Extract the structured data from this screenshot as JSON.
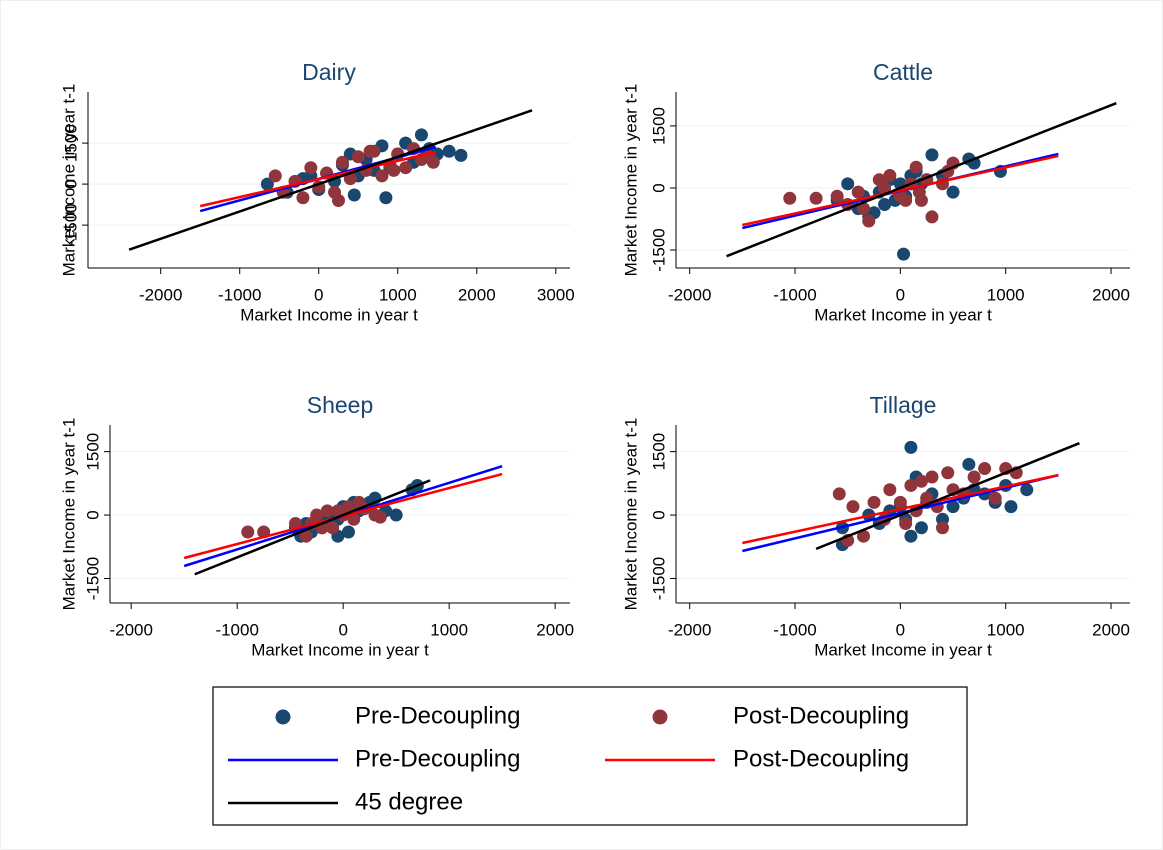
{
  "chart_data": [
    {
      "type": "scatter",
      "title": "Dairy",
      "xlabel": "Market Income in year t",
      "ylabel": "Market Income in year t-1",
      "xlim": [
        -2920,
        3180
      ],
      "ylim": [
        -3070,
        3370
      ],
      "xticks": [
        -2000,
        -1000,
        0,
        1000,
        2000,
        3000
      ],
      "yticks": [
        -1500,
        0,
        1500
      ],
      "grid": true,
      "series": [
        {
          "name": "Pre-Decoupling",
          "mode": "markers",
          "color": "#1a476f",
          "x": [
            -650,
            -400,
            -200,
            0,
            100,
            200,
            300,
            400,
            500,
            600,
            700,
            800,
            900,
            1000,
            1100,
            1200,
            1300,
            1400,
            1500,
            1650,
            1800,
            850,
            1350,
            450,
            -100
          ],
          "y": [
            0,
            -300,
            200,
            -200,
            400,
            100,
            700,
            1100,
            300,
            900,
            500,
            1400,
            600,
            1100,
            1500,
            800,
            1800,
            1300,
            1100,
            1200,
            1050,
            -500,
            1000,
            -400,
            300
          ]
        },
        {
          "name": "Post-Decoupling",
          "mode": "markers",
          "color": "#90353b",
          "x": [
            -550,
            -300,
            -200,
            -100,
            0,
            100,
            200,
            300,
            400,
            500,
            600,
            700,
            800,
            900,
            1000,
            1100,
            1200,
            1300,
            1400,
            -450,
            250,
            650,
            950,
            1450
          ],
          "y": [
            300,
            100,
            -500,
            600,
            -100,
            400,
            -300,
            800,
            200,
            1000,
            500,
            1200,
            300,
            700,
            1100,
            600,
            1300,
            900,
            1000,
            -300,
            -600,
            1200,
            500,
            800
          ]
        },
        {
          "name": "Pre-Decoupling",
          "mode": "line",
          "color": "#0000ff",
          "x": [
            -1500,
            1480
          ],
          "y": [
            -988,
            1354
          ]
        },
        {
          "name": "Post-Decoupling",
          "mode": "line",
          "color": "#ff0000",
          "x": [
            -1500,
            1480
          ],
          "y": [
            -805,
            1170
          ]
        },
        {
          "name": "45 degree",
          "mode": "line",
          "color": "#000000",
          "x": [
            -2400,
            2700
          ],
          "y": [
            -2400,
            2700
          ]
        }
      ]
    },
    {
      "type": "scatter",
      "title": "Cattle",
      "xlabel": "Market Income in year t",
      "ylabel": "Market Income in year t-1",
      "xlim": [
        -2130,
        2180
      ],
      "ylim": [
        -1935,
        2320
      ],
      "xticks": [
        -2000,
        -1000,
        0,
        1000,
        2000
      ],
      "yticks": [
        -1500,
        0,
        1500
      ],
      "grid": true,
      "series": [
        {
          "name": "Pre-Decoupling",
          "mode": "markers",
          "color": "#1a476f",
          "x": [
            -600,
            -500,
            -400,
            -350,
            -300,
            -200,
            -150,
            -100,
            -50,
            0,
            50,
            100,
            150,
            200,
            250,
            300,
            400,
            500,
            650,
            700,
            950,
            30,
            -250
          ],
          "y": [
            -300,
            100,
            -500,
            -200,
            -700,
            -100,
            -400,
            200,
            -300,
            100,
            -200,
            300,
            400,
            100,
            200,
            800,
            300,
            -100,
            700,
            600,
            400,
            -1600,
            -600
          ]
        },
        {
          "name": "Post-Decoupling",
          "mode": "markers",
          "color": "#90353b",
          "x": [
            -1050,
            -800,
            -600,
            -500,
            -400,
            -300,
            -200,
            -100,
            0,
            50,
            100,
            150,
            200,
            250,
            300,
            400,
            450,
            500,
            -350,
            -150,
            180
          ],
          "y": [
            -250,
            -250,
            -200,
            -400,
            -100,
            -800,
            200,
            300,
            -200,
            -300,
            100,
            500,
            -300,
            200,
            -700,
            100,
            400,
            600,
            -500,
            0,
            -100
          ]
        },
        {
          "name": "Pre-Decoupling",
          "mode": "line",
          "color": "#0000ff",
          "x": [
            -1500,
            1500
          ],
          "y": [
            -968,
            823
          ]
        },
        {
          "name": "Post-Decoupling",
          "mode": "line",
          "color": "#ff0000",
          "x": [
            -1500,
            1500
          ],
          "y": [
            -895,
            774
          ]
        },
        {
          "name": "45 degree",
          "mode": "line",
          "color": "#000000",
          "x": [
            -1650,
            2050
          ],
          "y": [
            -1650,
            2050
          ]
        }
      ]
    },
    {
      "type": "scatter",
      "title": "Sheep",
      "xlabel": "Market Income in year t",
      "ylabel": "Market Income in year t-1",
      "xlim": [
        -2200,
        2140
      ],
      "ylim": [
        -2080,
        2130
      ],
      "xticks": [
        -2000,
        -1000,
        0,
        1000,
        2000
      ],
      "yticks": [
        -1500,
        0,
        1500
      ],
      "grid": true,
      "series": [
        {
          "name": "Pre-Decoupling",
          "mode": "markers",
          "color": "#1a476f",
          "x": [
            -450,
            -400,
            -350,
            -300,
            -250,
            -200,
            -150,
            -100,
            -50,
            0,
            50,
            100,
            150,
            200,
            250,
            300,
            400,
            500,
            650,
            700,
            -50
          ],
          "y": [
            -300,
            -500,
            -200,
            -400,
            -100,
            -300,
            0,
            -200,
            -100,
            200,
            -400,
            300,
            100,
            200,
            300,
            400,
            100,
            0,
            600,
            700,
            -500
          ]
        },
        {
          "name": "Post-Decoupling",
          "mode": "markers",
          "color": "#90353b",
          "x": [
            -900,
            -750,
            -450,
            -350,
            -250,
            -200,
            -150,
            -100,
            -50,
            0,
            50,
            100,
            150,
            200,
            300,
            350,
            -300
          ],
          "y": [
            -400,
            -400,
            -200,
            -500,
            0,
            -300,
            100,
            -300,
            100,
            0,
            200,
            -100,
            300,
            150,
            0,
            -50,
            -200
          ]
        },
        {
          "name": "Pre-Decoupling",
          "mode": "line",
          "color": "#0000ff",
          "x": [
            -1500,
            1500
          ],
          "y": [
            -1205,
            1157
          ]
        },
        {
          "name": "Post-Decoupling",
          "mode": "line",
          "color": "#ff0000",
          "x": [
            -1500,
            1500
          ],
          "y": [
            -1016,
            969
          ]
        },
        {
          "name": "45 degree",
          "mode": "line",
          "color": "#000000",
          "x": [
            -1400,
            820
          ],
          "y": [
            -1400,
            820
          ]
        }
      ]
    },
    {
      "type": "scatter",
      "title": "Tillage",
      "xlabel": "Market Income in year t",
      "ylabel": "Market Income in year t-1",
      "xlim": [
        -2130,
        2180
      ],
      "ylim": [
        -2080,
        2130
      ],
      "xticks": [
        -2000,
        -1000,
        0,
        1000,
        2000
      ],
      "yticks": [
        -1500,
        0,
        1500
      ],
      "grid": true,
      "series": [
        {
          "name": "Pre-Decoupling",
          "mode": "markers",
          "color": "#1a476f",
          "x": [
            -550,
            -550,
            -300,
            -200,
            -100,
            0,
            50,
            100,
            150,
            200,
            250,
            300,
            400,
            500,
            600,
            650,
            700,
            800,
            900,
            1000,
            1200,
            100,
            1050
          ],
          "y": [
            -700,
            -300,
            0,
            -200,
            100,
            200,
            -100,
            1600,
            900,
            -300,
            300,
            500,
            -100,
            200,
            400,
            1200,
            600,
            500,
            300,
            700,
            600,
            -500,
            200
          ]
        },
        {
          "name": "Post-Decoupling",
          "mode": "markers",
          "color": "#90353b",
          "x": [
            -580,
            -500,
            -450,
            -350,
            -250,
            -150,
            -100,
            0,
            50,
            100,
            150,
            200,
            250,
            300,
            350,
            400,
            450,
            500,
            600,
            700,
            800,
            900,
            1000,
            1100
          ],
          "y": [
            500,
            -600,
            200,
            -500,
            300,
            -100,
            600,
            300,
            -200,
            700,
            100,
            800,
            400,
            900,
            200,
            -300,
            1000,
            600,
            500,
            900,
            1100,
            400,
            1100,
            1000
          ]
        },
        {
          "name": "Pre-Decoupling",
          "mode": "line",
          "color": "#0000ff",
          "x": [
            -1500,
            1500
          ],
          "y": [
            -850,
            945
          ]
        },
        {
          "name": "Post-Decoupling",
          "mode": "line",
          "color": "#ff0000",
          "x": [
            -1500,
            1500
          ],
          "y": [
            -661,
            945
          ]
        },
        {
          "name": "45 degree",
          "mode": "line",
          "color": "#000000",
          "x": [
            -800,
            1700
          ],
          "y": [
            -800,
            1700
          ]
        }
      ]
    }
  ]
}
